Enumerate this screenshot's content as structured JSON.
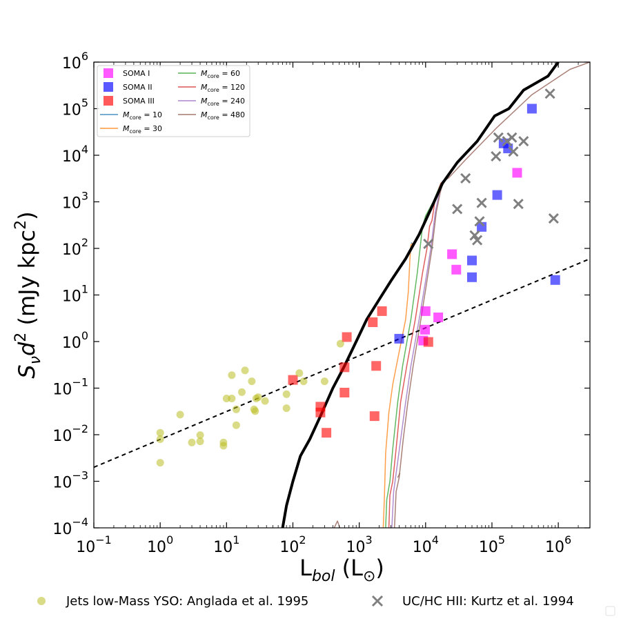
{
  "chart_data": {
    "type": "scatter",
    "xlabel": {
      "base": "L",
      "sub": "bol",
      "unit": "(L",
      "unit_sub": "⊙",
      "unit_close": ")"
    },
    "ylabel": {
      "prefix": "S",
      "prefix_sub": "ν",
      "mid": "d",
      "mid_sup": "2",
      "unit_open": " (mJy kpc",
      "unit_sup": "2",
      "unit_close": ")"
    },
    "xscale": "log",
    "yscale": "log",
    "xlim": [
      0.1,
      3000000
    ],
    "ylim": [
      0.0001,
      1000000
    ],
    "x_ticks": [
      {
        "value": 0.1,
        "base": "10",
        "exp": "−1"
      },
      {
        "value": 1,
        "base": "10",
        "exp": "0"
      },
      {
        "value": 10,
        "base": "10",
        "exp": "1"
      },
      {
        "value": 100,
        "base": "10",
        "exp": "2"
      },
      {
        "value": 1000,
        "base": "10",
        "exp": "3"
      },
      {
        "value": 10000,
        "base": "10",
        "exp": "4"
      },
      {
        "value": 100000,
        "base": "10",
        "exp": "5"
      },
      {
        "value": 1000000,
        "base": "10",
        "exp": "6"
      }
    ],
    "y_ticks": [
      {
        "value": 0.0001,
        "base": "10",
        "exp": "−4"
      },
      {
        "value": 0.001,
        "base": "10",
        "exp": "−3"
      },
      {
        "value": 0.01,
        "base": "10",
        "exp": "−2"
      },
      {
        "value": 0.1,
        "base": "10",
        "exp": "−1"
      },
      {
        "value": 1,
        "base": "10",
        "exp": "0"
      },
      {
        "value": 10,
        "base": "10",
        "exp": "1"
      },
      {
        "value": 100,
        "base": "10",
        "exp": "2"
      },
      {
        "value": 1000,
        "base": "10",
        "exp": "3"
      },
      {
        "value": 10000,
        "base": "10",
        "exp": "4"
      },
      {
        "value": 100000,
        "base": "10",
        "exp": "5"
      },
      {
        "value": 1000000,
        "base": "10",
        "exp": "6"
      }
    ],
    "legend_placement": "top-left",
    "series": [
      {
        "name": "SOMA I",
        "marker": "square",
        "color": "#ff00ff",
        "alpha": 0.65,
        "points": [
          [
            25000,
            75
          ],
          [
            29000,
            35
          ],
          [
            15500,
            3.3
          ],
          [
            10000,
            4.5
          ],
          [
            9800,
            1.8
          ],
          [
            9200,
            1.05
          ],
          [
            240000,
            4200
          ]
        ]
      },
      {
        "name": "SOMA II",
        "marker": "square",
        "color": "#0000ff",
        "alpha": 0.6,
        "points": [
          [
            4000,
            1.15
          ],
          [
            50000,
            55
          ],
          [
            50000,
            24
          ],
          [
            70000,
            290
          ],
          [
            120000,
            1400
          ],
          [
            150000,
            18000
          ],
          [
            175000,
            14000
          ],
          [
            400000,
            100000
          ],
          [
            900000,
            21
          ]
        ]
      },
      {
        "name": "SOMA III",
        "marker": "square",
        "color": "#ff0000",
        "alpha": 0.6,
        "points": [
          [
            100,
            0.15
          ],
          [
            260,
            0.04
          ],
          [
            260,
            0.03
          ],
          [
            320,
            0.011
          ],
          [
            600,
            0.28
          ],
          [
            600,
            0.08
          ],
          [
            650,
            1.25
          ],
          [
            1600,
            2.6
          ],
          [
            1800,
            0.3
          ],
          [
            1700,
            0.025
          ],
          [
            2200,
            4.5
          ],
          [
            11000,
            0.98
          ]
        ]
      },
      {
        "name": "Jets low-Mass YSO: Anglada et al. 1995",
        "marker": "circle",
        "color": "#bcbd22",
        "alpha": 0.55,
        "points": [
          [
            1,
            0.011
          ],
          [
            1,
            0.008
          ],
          [
            1,
            0.0025
          ],
          [
            2,
            0.027
          ],
          [
            3,
            0.0068
          ],
          [
            4,
            0.0098
          ],
          [
            4,
            0.0072
          ],
          [
            9,
            0.0068
          ],
          [
            9,
            0.0058
          ],
          [
            10,
            0.06
          ],
          [
            12,
            0.06
          ],
          [
            12,
            0.19
          ],
          [
            14,
            0.035
          ],
          [
            14,
            0.016
          ],
          [
            17,
            0.082
          ],
          [
            19,
            0.24
          ],
          [
            24,
            0.14
          ],
          [
            26,
            0.035
          ],
          [
            27,
            0.032
          ],
          [
            28,
            0.06
          ],
          [
            30,
            0.064
          ],
          [
            38,
            0.053
          ],
          [
            80,
            0.074
          ],
          [
            80,
            0.037
          ],
          [
            125,
            0.21
          ],
          [
            145,
            0.14
          ],
          [
            300,
            0.14
          ],
          [
            520,
            0.9
          ]
        ]
      },
      {
        "name": "UC/HC HII: Kurtz et al. 1994",
        "marker": "x",
        "color": "#7f7f7f",
        "alpha": 1,
        "points": [
          [
            11000,
            125
          ],
          [
            30000,
            700
          ],
          [
            40000,
            3200
          ],
          [
            55000,
            190
          ],
          [
            60000,
            150
          ],
          [
            65000,
            380
          ],
          [
            70000,
            950
          ],
          [
            115000,
            9500
          ],
          [
            125000,
            24000
          ],
          [
            170000,
            20000
          ],
          [
            200000,
            24000
          ],
          [
            210000,
            12000
          ],
          [
            250000,
            900
          ],
          [
            300000,
            20000
          ],
          [
            750000,
            210000
          ],
          [
            850000,
            440
          ]
        ]
      }
    ],
    "model_lines": [
      {
        "name": "M_core = 10",
        "label_main": "M",
        "label_sub": "core",
        "label_rest": " = 10",
        "color": "#1f77b4",
        "points": [
          [
            6000,
            130
          ],
          [
            6200,
            130
          ],
          [
            6400,
            120
          ]
        ]
      },
      {
        "name": "M_core = 30",
        "label_main": "M",
        "label_sub": "core",
        "label_rest": " = 30",
        "color": "#ff7f0e",
        "points": [
          [
            2300,
            0.0001
          ],
          [
            2400,
            0.0005
          ],
          [
            2500,
            0.004
          ],
          [
            2800,
            0.03
          ],
          [
            3200,
            0.12
          ],
          [
            4000,
            0.6
          ],
          [
            5000,
            3
          ],
          [
            5500,
            12
          ],
          [
            5800,
            60
          ],
          [
            6000,
            120
          ],
          [
            6500,
            130
          ]
        ]
      },
      {
        "name": "M_core = 60",
        "label_main": "M",
        "label_sub": "core",
        "label_rest": " = 60",
        "color": "#2ca02c",
        "points": [
          [
            2500,
            0.0001
          ],
          [
            2600,
            0.0004
          ],
          [
            2900,
            0.001
          ],
          [
            3200,
            0.005
          ],
          [
            3800,
            0.05
          ],
          [
            4500,
            0.3
          ],
          [
            6000,
            3
          ],
          [
            7500,
            30
          ],
          [
            9000,
            300
          ],
          [
            10000,
            500
          ],
          [
            13000,
            1000
          ],
          [
            17000,
            2500
          ],
          [
            20000,
            3000
          ]
        ]
      },
      {
        "name": "M_core = 120",
        "label_main": "M",
        "label_sub": "core",
        "label_rest": " = 120",
        "color": "#d62728",
        "points": [
          [
            2800,
            0.0001
          ],
          [
            2900,
            0.0005
          ],
          [
            3200,
            0.001
          ],
          [
            3600,
            0.005
          ],
          [
            4200,
            0.05
          ],
          [
            5200,
            0.3
          ],
          [
            7000,
            3
          ],
          [
            9000,
            30
          ],
          [
            10500,
            100
          ],
          [
            11500,
            300
          ],
          [
            12500,
            400
          ],
          [
            14000,
            1200
          ],
          [
            17000,
            2500
          ],
          [
            20000,
            3000
          ]
        ]
      },
      {
        "name": "M_core = 240",
        "label_main": "M",
        "label_sub": "core",
        "label_rest": " = 240",
        "color": "#9467bd",
        "points": [
          [
            3100,
            0.0001
          ],
          [
            3300,
            0.0006
          ],
          [
            3700,
            0.002
          ],
          [
            4300,
            0.01
          ],
          [
            5000,
            0.05
          ],
          [
            6000,
            0.3
          ],
          [
            8000,
            3
          ],
          [
            10000,
            20
          ],
          [
            12000,
            100
          ],
          [
            14000,
            600
          ],
          [
            16000,
            1500
          ],
          [
            18000,
            2800
          ],
          [
            20000,
            2900
          ]
        ]
      },
      {
        "name": "M_core = 480",
        "label_main": "M",
        "label_sub": "core",
        "label_rest": " = 480",
        "color": "#8c564b",
        "points": [
          [
            3400,
            0.0001
          ],
          [
            3600,
            0.0006
          ],
          [
            4000,
            0.0012
          ],
          [
            4600,
            0.008
          ],
          [
            5400,
            0.05
          ],
          [
            6500,
            0.3
          ],
          [
            8500,
            3
          ],
          [
            10500,
            20
          ],
          [
            12500,
            100
          ],
          [
            14500,
            600
          ],
          [
            16500,
            1500
          ],
          [
            18500,
            2800
          ],
          [
            22000,
            3200
          ],
          [
            40000,
            8000
          ],
          [
            120000,
            40000
          ],
          [
            400000,
            200000
          ],
          [
            1500000,
            700000
          ],
          [
            3000000,
            1000000
          ]
        ]
      },
      {
        "name": "M_core = 480 (low branch)",
        "color": "#8c564b",
        "points": [
          [
            420,
            0.0001
          ],
          [
            470,
            0.00014
          ],
          [
            510,
            0.0001
          ]
        ],
        "legend": false
      },
      {
        "name": "M_core = 480 (mid)",
        "color": "#8c564b",
        "points": [
          [
            3800,
            0.0012
          ],
          [
            4100,
            0.0015
          ]
        ],
        "legend": false
      },
      {
        "name": "black",
        "color": "#000000",
        "width": 4,
        "legend": false,
        "points": [
          [
            70,
            0.0001
          ],
          [
            80,
            0.0003
          ],
          [
            100,
            0.001
          ],
          [
            130,
            0.0035
          ],
          [
            180,
            0.008
          ],
          [
            260,
            0.025
          ],
          [
            400,
            0.1
          ],
          [
            600,
            0.3
          ],
          [
            900,
            1
          ],
          [
            1300,
            3
          ],
          [
            2000,
            8
          ],
          [
            3000,
            20
          ],
          [
            5000,
            60
          ],
          [
            8000,
            200
          ],
          [
            12000,
            700
          ],
          [
            18000,
            2500
          ],
          [
            30000,
            7000
          ],
          [
            60000,
            20000
          ],
          [
            110000,
            70000
          ],
          [
            180000,
            100000
          ],
          [
            300000,
            250000
          ],
          [
            700000,
            500000
          ],
          [
            1000000,
            1000000
          ]
        ]
      },
      {
        "name": "dashed",
        "color": "#000000",
        "width": 2,
        "dash": "6,5",
        "legend": false,
        "points": [
          [
            0.1,
            0.002
          ],
          [
            3000000,
            60
          ]
        ]
      }
    ],
    "legend_top": [
      {
        "label": "SOMA I",
        "type": "square",
        "color": "#ff00ff"
      },
      {
        "label": "SOMA II",
        "type": "square",
        "color": "#0000ff"
      },
      {
        "label": "SOMA III",
        "type": "square",
        "color": "#ff0000"
      },
      {
        "label_main": "M",
        "label_sub": "core",
        "label_rest": " = 10",
        "type": "line",
        "color": "#1f77b4"
      },
      {
        "label_main": "M",
        "label_sub": "core",
        "label_rest": " = 30",
        "type": "line",
        "color": "#ff7f0e"
      },
      {
        "label_main": "M",
        "label_sub": "core",
        "label_rest": " = 60",
        "type": "line",
        "color": "#2ca02c"
      },
      {
        "label_main": "M",
        "label_sub": "core",
        "label_rest": " = 120",
        "type": "line",
        "color": "#d62728"
      },
      {
        "label_main": "M",
        "label_sub": "core",
        "label_rest": " = 240",
        "type": "line",
        "color": "#9467bd"
      },
      {
        "label_main": "M",
        "label_sub": "core",
        "label_rest": " = 480",
        "type": "line",
        "color": "#8c564b"
      }
    ],
    "legend_bottom": [
      {
        "label": "Jets low-Mass YSO: Anglada et al. 1995",
        "type": "circle",
        "color": "#bcbd22"
      },
      {
        "label": "UC/HC HII: Kurtz et al. 1994",
        "type": "x",
        "color": "#7f7f7f"
      }
    ]
  }
}
